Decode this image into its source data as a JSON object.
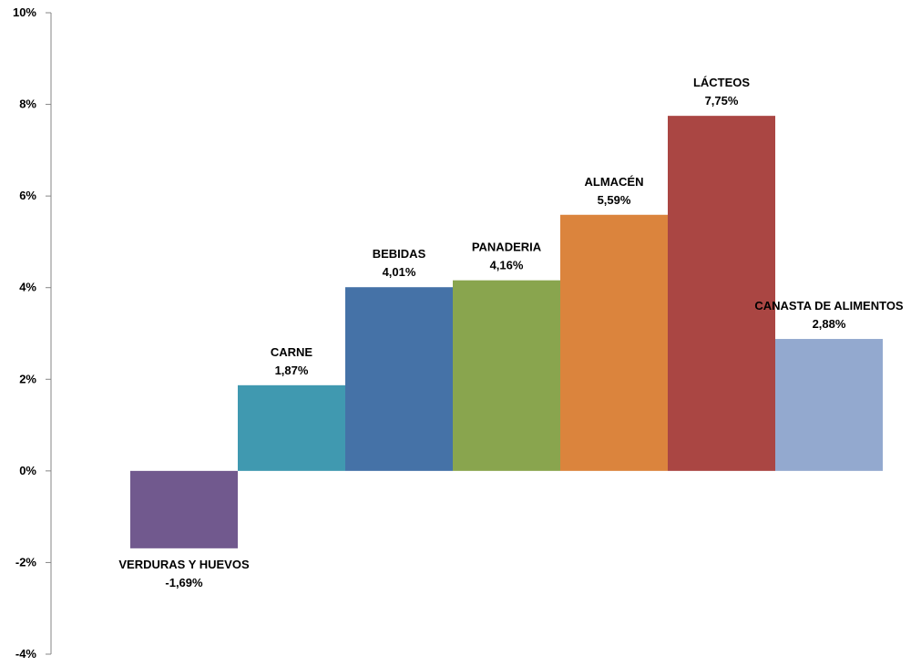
{
  "chart_data": {
    "type": "bar",
    "title": "",
    "xlabel": "",
    "ylabel": "",
    "ylim": [
      -4,
      10
    ],
    "ytick_step": 2,
    "ytick_labels": [
      "-4%",
      "-2%",
      "0%",
      "2%",
      "4%",
      "6%",
      "8%",
      "10%"
    ],
    "grid": false,
    "legend": "none",
    "categories": [
      "VERDURAS Y HUEVOS",
      "CARNE",
      "BEBIDAS",
      "PANADERIA",
      "ALMACÉN",
      "LÁCTEOS",
      "CANASTA DE ALIMENTOS"
    ],
    "values": [
      -1.69,
      1.87,
      4.01,
      4.16,
      5.59,
      7.75,
      2.88
    ],
    "value_labels": [
      "-1,69%",
      "1,87%",
      "4,01%",
      "4,16%",
      "5,59%",
      "7,75%",
      "2,88%"
    ],
    "colors": [
      "#71598e",
      "#4099b0",
      "#4572a7",
      "#89a54e",
      "#db843d",
      "#aa4643",
      "#93a9cf"
    ]
  }
}
